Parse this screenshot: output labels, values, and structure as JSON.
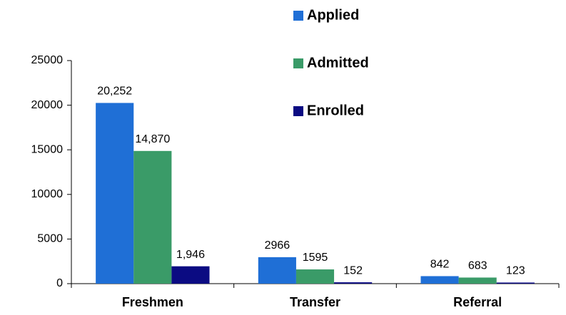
{
  "chart_data": {
    "type": "bar",
    "categories": [
      "Freshmen",
      "Transfer",
      "Referral"
    ],
    "series": [
      {
        "name": "Applied",
        "color": "#1f6fd6",
        "values": [
          20252,
          2966,
          842
        ],
        "value_labels": [
          "20,252",
          "2966",
          "842"
        ]
      },
      {
        "name": "Admitted",
        "color": "#3a9b68",
        "values": [
          14870,
          1595,
          683
        ],
        "value_labels": [
          "14,870",
          "1595",
          "683"
        ]
      },
      {
        "name": "Enrolled",
        "color": "#0b0b82",
        "values": [
          1946,
          152,
          123
        ],
        "value_labels": [
          "1,946",
          "152",
          "123"
        ]
      }
    ],
    "ylim": [
      0,
      25000
    ],
    "yticks": [
      0,
      5000,
      10000,
      15000,
      20000,
      25000
    ],
    "grid": false,
    "legend": "top"
  }
}
